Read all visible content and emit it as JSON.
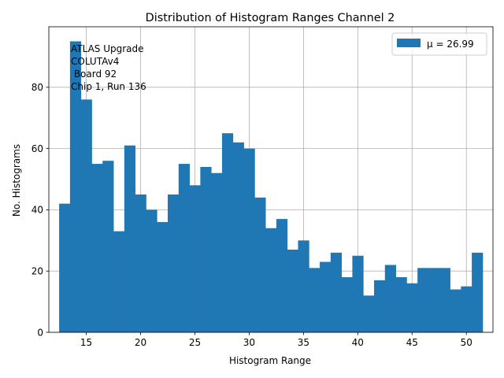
{
  "chart_data": {
    "type": "bar",
    "title": "Distribution of Histogram Ranges Channel 2",
    "xlabel": "Histogram Range",
    "ylabel": "No. Histograms",
    "xlim": [
      11.55,
      52.45
    ],
    "ylim": [
      0,
      99.75
    ],
    "xticks": [
      15,
      20,
      25,
      30,
      35,
      40,
      45,
      50
    ],
    "yticks": [
      0,
      20,
      40,
      60,
      80
    ],
    "grid": true,
    "legend_position": "top-right",
    "legend_label": "μ = 26.99",
    "bar_color": "#1f77b4",
    "annotation_lines": [
      "ATLAS Upgrade",
      "COLUTAv4",
      " Board 92",
      "Chip 1, Run 136"
    ],
    "bins": [
      {
        "x0": 12.5,
        "x1": 13.5,
        "value": 42
      },
      {
        "x0": 13.5,
        "x1": 14.5,
        "value": 95
      },
      {
        "x0": 14.5,
        "x1": 15.5,
        "value": 76
      },
      {
        "x0": 15.5,
        "x1": 16.5,
        "value": 55
      },
      {
        "x0": 16.5,
        "x1": 17.5,
        "value": 56
      },
      {
        "x0": 17.5,
        "x1": 18.5,
        "value": 33
      },
      {
        "x0": 18.5,
        "x1": 19.5,
        "value": 61
      },
      {
        "x0": 19.5,
        "x1": 20.5,
        "value": 45
      },
      {
        "x0": 20.5,
        "x1": 21.5,
        "value": 40
      },
      {
        "x0": 21.5,
        "x1": 22.5,
        "value": 36
      },
      {
        "x0": 22.5,
        "x1": 23.5,
        "value": 45
      },
      {
        "x0": 23.5,
        "x1": 24.5,
        "value": 55
      },
      {
        "x0": 24.5,
        "x1": 25.5,
        "value": 48
      },
      {
        "x0": 25.5,
        "x1": 26.5,
        "value": 54
      },
      {
        "x0": 26.5,
        "x1": 27.5,
        "value": 52
      },
      {
        "x0": 27.5,
        "x1": 28.5,
        "value": 65
      },
      {
        "x0": 28.5,
        "x1": 29.5,
        "value": 62
      },
      {
        "x0": 29.5,
        "x1": 30.5,
        "value": 60
      },
      {
        "x0": 30.5,
        "x1": 31.5,
        "value": 44
      },
      {
        "x0": 31.5,
        "x1": 32.5,
        "value": 34
      },
      {
        "x0": 32.5,
        "x1": 33.5,
        "value": 37
      },
      {
        "x0": 33.5,
        "x1": 34.5,
        "value": 27
      },
      {
        "x0": 34.5,
        "x1": 35.5,
        "value": 30
      },
      {
        "x0": 35.5,
        "x1": 36.5,
        "value": 21
      },
      {
        "x0": 36.5,
        "x1": 37.5,
        "value": 23
      },
      {
        "x0": 37.5,
        "x1": 38.5,
        "value": 26
      },
      {
        "x0": 38.5,
        "x1": 39.5,
        "value": 18
      },
      {
        "x0": 39.5,
        "x1": 40.5,
        "value": 25
      },
      {
        "x0": 40.5,
        "x1": 41.5,
        "value": 12
      },
      {
        "x0": 41.5,
        "x1": 42.5,
        "value": 17
      },
      {
        "x0": 42.5,
        "x1": 43.5,
        "value": 22
      },
      {
        "x0": 43.5,
        "x1": 44.5,
        "value": 18
      },
      {
        "x0": 44.5,
        "x1": 45.5,
        "value": 16
      },
      {
        "x0": 45.5,
        "x1": 46.5,
        "value": 21
      },
      {
        "x0": 46.5,
        "x1": 47.5,
        "value": 21
      },
      {
        "x0": 47.5,
        "x1": 48.5,
        "value": 21
      },
      {
        "x0": 48.5,
        "x1": 49.5,
        "value": 14
      },
      {
        "x0": 49.5,
        "x1": 50.5,
        "value": 15
      },
      {
        "x0": 50.5,
        "x1": 51.5,
        "value": 26
      }
    ]
  }
}
